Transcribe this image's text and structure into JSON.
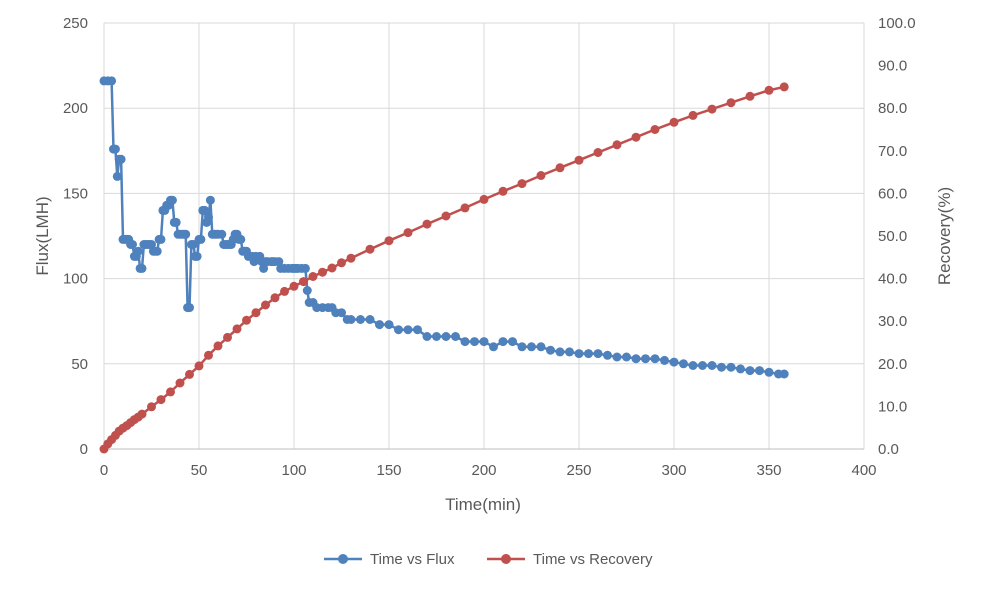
{
  "chart_data": {
    "type": "line",
    "title": "",
    "xlabel": "Time(min)",
    "ylabel": "Flux(LMH)",
    "y2label": "Recovery(%)",
    "xlim": [
      0,
      400
    ],
    "ylim": [
      0,
      250
    ],
    "y2lim": [
      0,
      100
    ],
    "grid": true,
    "legend_position": "bottom",
    "x_ticks": [
      "0",
      "50",
      "100",
      "150",
      "200",
      "250",
      "300",
      "350",
      "400"
    ],
    "y_ticks": [
      "0",
      "50",
      "100",
      "150",
      "200",
      "250"
    ],
    "y2_ticks": [
      "0.0",
      "10.0",
      "20.0",
      "30.0",
      "40.0",
      "50.0",
      "60.0",
      "70.0",
      "80.0",
      "90.0",
      "100.0"
    ],
    "series": [
      {
        "name": "Time vs Flux",
        "axis": "left",
        "color": "#4F81BD",
        "points": [
          [
            0,
            216
          ],
          [
            2,
            216
          ],
          [
            4,
            216
          ],
          [
            5,
            176
          ],
          [
            6,
            176
          ],
          [
            7,
            160
          ],
          [
            8,
            170
          ],
          [
            9,
            170
          ],
          [
            10,
            123
          ],
          [
            11,
            123
          ],
          [
            12,
            123
          ],
          [
            13,
            123
          ],
          [
            14,
            120
          ],
          [
            15,
            120
          ],
          [
            16,
            113
          ],
          [
            17,
            113
          ],
          [
            18,
            116
          ],
          [
            19,
            106
          ],
          [
            20,
            106
          ],
          [
            21,
            120
          ],
          [
            22,
            120
          ],
          [
            23,
            120
          ],
          [
            24,
            120
          ],
          [
            25,
            120
          ],
          [
            26,
            116
          ],
          [
            27,
            116
          ],
          [
            28,
            116
          ],
          [
            29,
            123
          ],
          [
            30,
            123
          ],
          [
            31,
            140
          ],
          [
            32,
            140
          ],
          [
            33,
            143
          ],
          [
            34,
            143
          ],
          [
            35,
            146
          ],
          [
            36,
            146
          ],
          [
            37,
            133
          ],
          [
            38,
            133
          ],
          [
            39,
            126
          ],
          [
            40,
            126
          ],
          [
            41,
            126
          ],
          [
            42,
            126
          ],
          [
            43,
            126
          ],
          [
            44,
            83
          ],
          [
            45,
            83
          ],
          [
            46,
            120
          ],
          [
            47,
            120
          ],
          [
            48,
            113
          ],
          [
            49,
            113
          ],
          [
            50,
            123
          ],
          [
            51,
            123
          ],
          [
            52,
            140
          ],
          [
            53,
            140
          ],
          [
            54,
            133
          ],
          [
            55,
            136
          ],
          [
            56,
            146
          ],
          [
            57,
            126
          ],
          [
            58,
            126
          ],
          [
            59,
            126
          ],
          [
            60,
            126
          ],
          [
            62,
            126
          ],
          [
            63,
            120
          ],
          [
            64,
            120
          ],
          [
            65,
            120
          ],
          [
            66,
            120
          ],
          [
            67,
            120
          ],
          [
            68,
            123
          ],
          [
            69,
            126
          ],
          [
            70,
            126
          ],
          [
            71,
            123
          ],
          [
            72,
            123
          ],
          [
            73,
            116
          ],
          [
            74,
            116
          ],
          [
            75,
            116
          ],
          [
            76,
            113
          ],
          [
            78,
            113
          ],
          [
            79,
            110
          ],
          [
            80,
            113
          ],
          [
            82,
            113
          ],
          [
            83,
            110
          ],
          [
            84,
            106
          ],
          [
            85,
            110
          ],
          [
            86,
            110
          ],
          [
            88,
            110
          ],
          [
            89,
            110
          ],
          [
            90,
            110
          ],
          [
            92,
            110
          ],
          [
            93,
            106
          ],
          [
            95,
            106
          ],
          [
            97,
            106
          ],
          [
            99,
            106
          ],
          [
            100,
            106
          ],
          [
            101,
            106
          ],
          [
            102,
            106
          ],
          [
            104,
            106
          ],
          [
            106,
            106
          ],
          [
            107,
            93
          ],
          [
            108,
            86
          ],
          [
            110,
            86
          ],
          [
            112,
            83
          ],
          [
            115,
            83
          ],
          [
            118,
            83
          ],
          [
            120,
            83
          ],
          [
            122,
            80
          ],
          [
            125,
            80
          ],
          [
            128,
            76
          ],
          [
            130,
            76
          ],
          [
            135,
            76
          ],
          [
            140,
            76
          ],
          [
            145,
            73
          ],
          [
            150,
            73
          ],
          [
            155,
            70
          ],
          [
            160,
            70
          ],
          [
            165,
            70
          ],
          [
            170,
            66
          ],
          [
            175,
            66
          ],
          [
            180,
            66
          ],
          [
            185,
            66
          ],
          [
            190,
            63
          ],
          [
            195,
            63
          ],
          [
            200,
            63
          ],
          [
            205,
            60
          ],
          [
            210,
            63
          ],
          [
            215,
            63
          ],
          [
            220,
            60
          ],
          [
            225,
            60
          ],
          [
            230,
            60
          ],
          [
            235,
            58
          ],
          [
            240,
            57
          ],
          [
            245,
            57
          ],
          [
            250,
            56
          ],
          [
            255,
            56
          ],
          [
            260,
            56
          ],
          [
            265,
            55
          ],
          [
            270,
            54
          ],
          [
            275,
            54
          ],
          [
            280,
            53
          ],
          [
            285,
            53
          ],
          [
            290,
            53
          ],
          [
            295,
            52
          ],
          [
            300,
            51
          ],
          [
            305,
            50
          ],
          [
            310,
            49
          ],
          [
            315,
            49
          ],
          [
            320,
            49
          ],
          [
            325,
            48
          ],
          [
            330,
            48
          ],
          [
            335,
            47
          ],
          [
            340,
            46
          ],
          [
            345,
            46
          ],
          [
            350,
            45
          ],
          [
            355,
            44
          ],
          [
            358,
            44
          ]
        ]
      },
      {
        "name": "Time vs Recovery",
        "axis": "right",
        "color": "#C0504D",
        "points": [
          [
            0,
            0
          ],
          [
            2,
            1.2
          ],
          [
            4,
            2.2
          ],
          [
            6,
            3.2
          ],
          [
            8,
            4.2
          ],
          [
            10,
            4.9
          ],
          [
            12,
            5.5
          ],
          [
            14,
            6.2
          ],
          [
            16,
            6.9
          ],
          [
            18,
            7.5
          ],
          [
            20,
            8.2
          ],
          [
            25,
            9.9
          ],
          [
            30,
            11.6
          ],
          [
            35,
            13.4
          ],
          [
            40,
            15.5
          ],
          [
            45,
            17.5
          ],
          [
            50,
            19.5
          ],
          [
            55,
            22.0
          ],
          [
            60,
            24.2
          ],
          [
            65,
            26.2
          ],
          [
            70,
            28.2
          ],
          [
            75,
            30.2
          ],
          [
            80,
            32.0
          ],
          [
            85,
            33.8
          ],
          [
            90,
            35.5
          ],
          [
            95,
            37.0
          ],
          [
            100,
            38.2
          ],
          [
            105,
            39.3
          ],
          [
            110,
            40.5
          ],
          [
            115,
            41.5
          ],
          [
            120,
            42.5
          ],
          [
            125,
            43.7
          ],
          [
            130,
            44.8
          ],
          [
            140,
            46.9
          ],
          [
            150,
            48.9
          ],
          [
            160,
            50.8
          ],
          [
            170,
            52.8
          ],
          [
            180,
            54.7
          ],
          [
            190,
            56.6
          ],
          [
            200,
            58.6
          ],
          [
            210,
            60.5
          ],
          [
            220,
            62.3
          ],
          [
            230,
            64.2
          ],
          [
            240,
            66.0
          ],
          [
            250,
            67.8
          ],
          [
            260,
            69.6
          ],
          [
            270,
            71.4
          ],
          [
            280,
            73.2
          ],
          [
            290,
            75.0
          ],
          [
            300,
            76.7
          ],
          [
            310,
            78.3
          ],
          [
            320,
            79.8
          ],
          [
            330,
            81.3
          ],
          [
            340,
            82.8
          ],
          [
            350,
            84.2
          ],
          [
            358,
            85.0
          ]
        ]
      }
    ]
  }
}
